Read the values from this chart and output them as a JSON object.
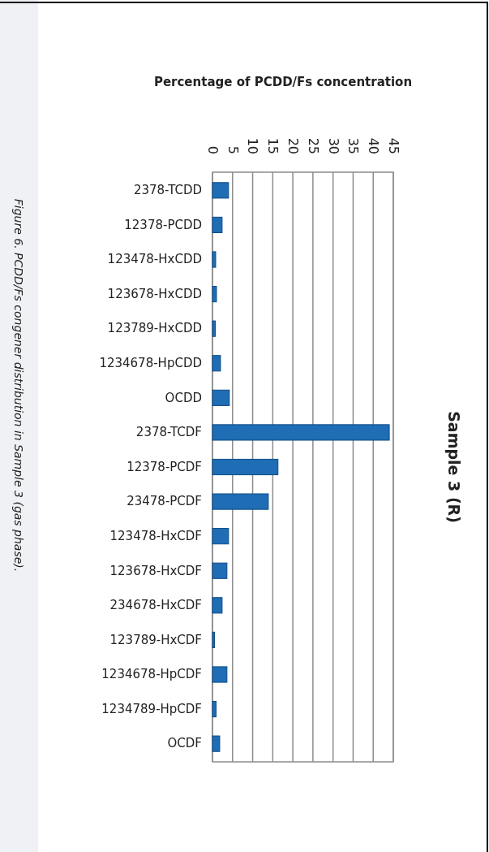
{
  "chart_data": {
    "type": "bar",
    "orientation": "horizontal",
    "title": "Sample 3 (R)",
    "xlabel": "Percentage of PCDD/Fs concentration",
    "annotations": [
      "Figure 6. PCDD/Fs congener distribution in Sample 3 (gas phase)."
    ],
    "categories": [
      "2378-TCDD",
      "12378-PCDD",
      "123478-HxCDD",
      "123678-HxCDD",
      "123789-HxCDD",
      "1234678-HpCDD",
      "OCDD",
      "2378-TCDF",
      "12378-PCDF",
      "23478-PCDF",
      "123478-HxCDF",
      "123678-HxCDF",
      "234678-HxCDF",
      "123789-HxCDF",
      "1234678-HpCDF",
      "1234789-HpCDF",
      "OCDF"
    ],
    "series": [
      {
        "color": "#1f6db5",
        "values": [
          4.0,
          2.4,
          0.8,
          1.0,
          0.7,
          2.0,
          4.2,
          44,
          16.3,
          13.9,
          4.0,
          3.6,
          2.4,
          0.5,
          3.6,
          0.9,
          1.8
        ]
      }
    ],
    "xlim": [
      0,
      45
    ],
    "xticks": [
      0,
      5,
      10,
      15,
      20,
      25,
      30,
      35,
      40,
      45
    ],
    "grid": "x"
  }
}
